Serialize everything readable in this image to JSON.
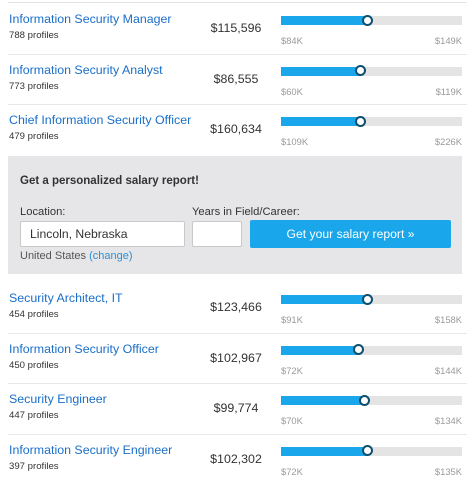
{
  "rows_top": [
    {
      "title": "Information Security Manager",
      "profiles": "788 profiles",
      "salary": "$115,596",
      "min": "$84K",
      "max": "$149K",
      "fill_fraction": 0.48
    },
    {
      "title": "Information Security Analyst",
      "profiles": "773 profiles",
      "salary": "$86,555",
      "min": "$60K",
      "max": "$119K",
      "fill_fraction": 0.44
    },
    {
      "title": "Chief Information Security Officer",
      "profiles": "479 profiles",
      "salary": "$160,634",
      "min": "$109K",
      "max": "$226K",
      "fill_fraction": 0.44
    }
  ],
  "report": {
    "title": "Get a personalized salary report!",
    "location_label": "Location:",
    "location_value": "Lincoln, Nebraska",
    "years_label": "Years in Field/Career:",
    "years_value": "",
    "button_label": "Get your salary report »",
    "country": "United States",
    "change_label": "(change)"
  },
  "rows_bottom": [
    {
      "title": "Security Architect, IT",
      "profiles": "454 profiles",
      "salary": "$123,466",
      "min": "$91K",
      "max": "$158K",
      "fill_fraction": 0.48
    },
    {
      "title": "Information Security Officer",
      "profiles": "450 profiles",
      "salary": "$102,967",
      "min": "$72K",
      "max": "$144K",
      "fill_fraction": 0.43
    },
    {
      "title": "Security Engineer",
      "profiles": "447 profiles",
      "salary": "$99,774",
      "min": "$70K",
      "max": "$134K",
      "fill_fraction": 0.46
    },
    {
      "title": "Information Security Engineer",
      "profiles": "397 profiles",
      "salary": "$102,302",
      "min": "$72K",
      "max": "$135K",
      "fill_fraction": 0.48
    }
  ],
  "colors": {
    "link": "#1a6fc9",
    "bar_fill": "#19a6ea",
    "bar_track": "#e4e4e4",
    "knob_border": "#0d4f6e",
    "report_bg": "#e6e6e8"
  }
}
